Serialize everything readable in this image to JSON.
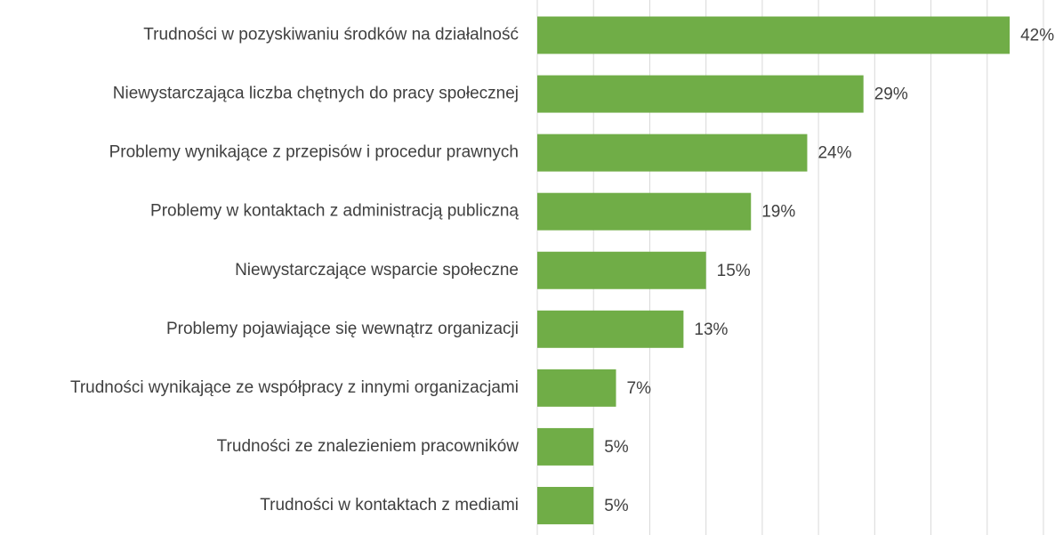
{
  "chart_data": {
    "type": "hbar",
    "categories": [
      "Trudności w pozyskiwaniu środków na działalność",
      "Niewystarczająca liczba chętnych do pracy społecznej",
      "Problemy wynikające z przepisów i procedur prawnych",
      "Problemy w kontaktach z administracją publiczną",
      "Niewystarczające wsparcie społeczne",
      "Problemy pojawiające się wewnątrz organizacji",
      "Trudności wynikające ze współpracy z innymi organizacjami",
      "Trudności ze znalezieniem pracowników",
      "Trudności w kontaktach z mediami"
    ],
    "values": [
      42,
      29,
      24,
      19,
      15,
      13,
      7,
      5,
      5
    ],
    "value_labels": [
      "42%",
      "29%",
      "24%",
      "19%",
      "15%",
      "13%",
      "7%",
      "5%",
      "5%"
    ],
    "color": "#70ad47",
    "xlim": [
      0,
      45
    ],
    "xticks": [
      0,
      5,
      10,
      15,
      20,
      25,
      30,
      35,
      40,
      45
    ],
    "grid": true
  }
}
